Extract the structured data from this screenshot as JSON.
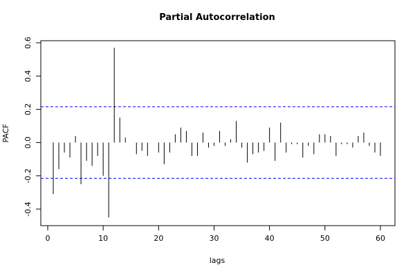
{
  "chart_data": {
    "type": "bar",
    "title": "Partial Autocorrelation",
    "xlabel": "lags",
    "ylabel": "PACF",
    "xlim": [
      0,
      60
    ],
    "ylim": [
      -0.45,
      0.57
    ],
    "x_ticks": [
      0,
      10,
      20,
      30,
      40,
      50,
      60
    ],
    "y_ticks": [
      -0.4,
      -0.2,
      0.0,
      0.2,
      0.4,
      0.6
    ],
    "x_tick_labels": [
      "0",
      "10",
      "20",
      "30",
      "40",
      "50",
      "60"
    ],
    "y_tick_labels": [
      "-0.4",
      "-0.2",
      "0.0",
      "0.2",
      "0.4",
      "0.6"
    ],
    "confidence_limit": 0.215,
    "confidence_color": "#0000ff",
    "spike_color": "#000000",
    "lags": [
      1,
      2,
      3,
      4,
      5,
      6,
      7,
      8,
      9,
      10,
      11,
      12,
      13,
      14,
      15,
      16,
      17,
      18,
      19,
      20,
      21,
      22,
      23,
      24,
      25,
      26,
      27,
      28,
      29,
      30,
      31,
      32,
      33,
      34,
      35,
      36,
      37,
      38,
      39,
      40,
      41,
      42,
      43,
      44,
      45,
      46,
      47,
      48,
      49,
      50,
      51,
      52,
      53,
      54,
      55,
      56,
      57,
      58,
      59,
      60
    ],
    "values": [
      -0.31,
      -0.16,
      -0.06,
      -0.09,
      0.04,
      -0.25,
      -0.11,
      -0.14,
      -0.08,
      -0.2,
      -0.45,
      0.57,
      0.15,
      0.03,
      0.0,
      -0.07,
      -0.05,
      -0.08,
      0.0,
      -0.06,
      -0.13,
      -0.06,
      0.05,
      0.09,
      0.07,
      -0.08,
      -0.08,
      0.06,
      -0.03,
      -0.02,
      0.07,
      -0.02,
      0.02,
      0.13,
      -0.03,
      -0.12,
      -0.07,
      -0.06,
      -0.05,
      0.09,
      -0.11,
      0.12,
      -0.06,
      -0.01,
      -0.01,
      -0.09,
      -0.02,
      -0.07,
      0.05,
      0.05,
      0.04,
      -0.08,
      -0.01,
      -0.01,
      -0.03,
      0.04,
      0.06,
      -0.02,
      -0.06,
      -0.08
    ]
  }
}
